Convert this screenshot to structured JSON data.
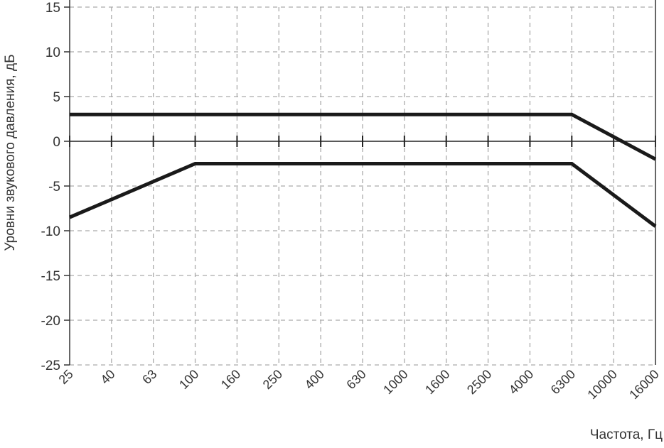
{
  "chart_data": {
    "type": "line",
    "title": "",
    "xlabel": "Частота, Гц",
    "ylabel": "Уровни звукового давления, дБ",
    "categories": [
      "25",
      "40",
      "63",
      "100",
      "160",
      "250",
      "400",
      "630",
      "1000",
      "1600",
      "2500",
      "4000",
      "6300",
      "10000",
      "16000"
    ],
    "ylim": [
      -25,
      15
    ],
    "yticks": [
      -25,
      -20,
      -15,
      -10,
      -5,
      0,
      5,
      10,
      15
    ],
    "grid": true,
    "series": [
      {
        "values": [
          3,
          3,
          3,
          3,
          3,
          3,
          3,
          3,
          3,
          3,
          3,
          3,
          3,
          0.5,
          -2
        ]
      },
      {
        "values": [
          -8.5,
          -6.5,
          -4.5,
          -2.5,
          -2.5,
          -2.5,
          -2.5,
          -2.5,
          -2.5,
          -2.5,
          -2.5,
          -2.5,
          -2.5,
          -6,
          -9.5
        ]
      }
    ],
    "colors": {
      "line": "#1a1a1a",
      "grid": "#aaaaaa",
      "axis": "#333333"
    }
  }
}
